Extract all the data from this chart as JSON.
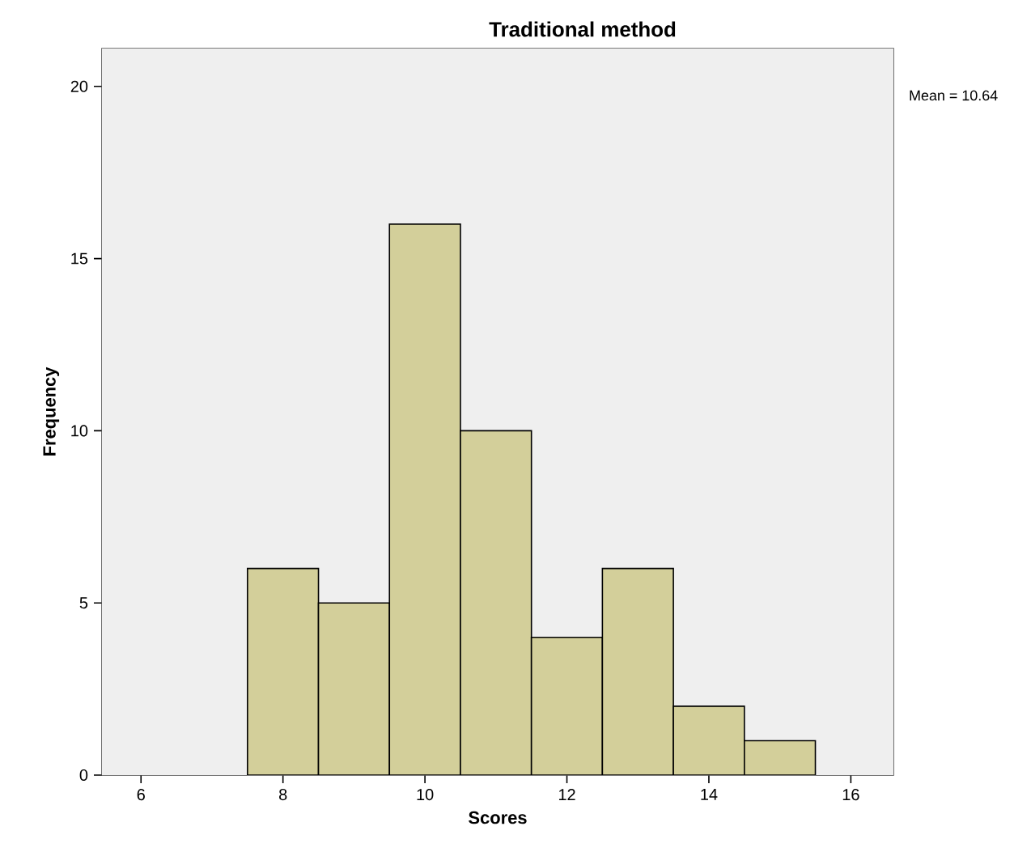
{
  "chart_data": {
    "type": "histogram",
    "title": "Traditional method",
    "xlabel": "Scores",
    "ylabel": "Frequency",
    "bins": [
      7.5,
      8.5,
      9.5,
      10.5,
      11.5,
      12.5,
      13.5,
      14.5,
      15.5
    ],
    "values": [
      6,
      5,
      16,
      10,
      4,
      6,
      2,
      1
    ],
    "color": "#d3cf9a",
    "xlim": [
      5.45,
      16.6
    ],
    "xticks": [
      6,
      8,
      10,
      12,
      14,
      16
    ],
    "ylim": [
      0,
      21.1
    ],
    "yticks": [
      0,
      5,
      10,
      15,
      20
    ],
    "annotations": [
      "Mean = 10.64"
    ]
  }
}
